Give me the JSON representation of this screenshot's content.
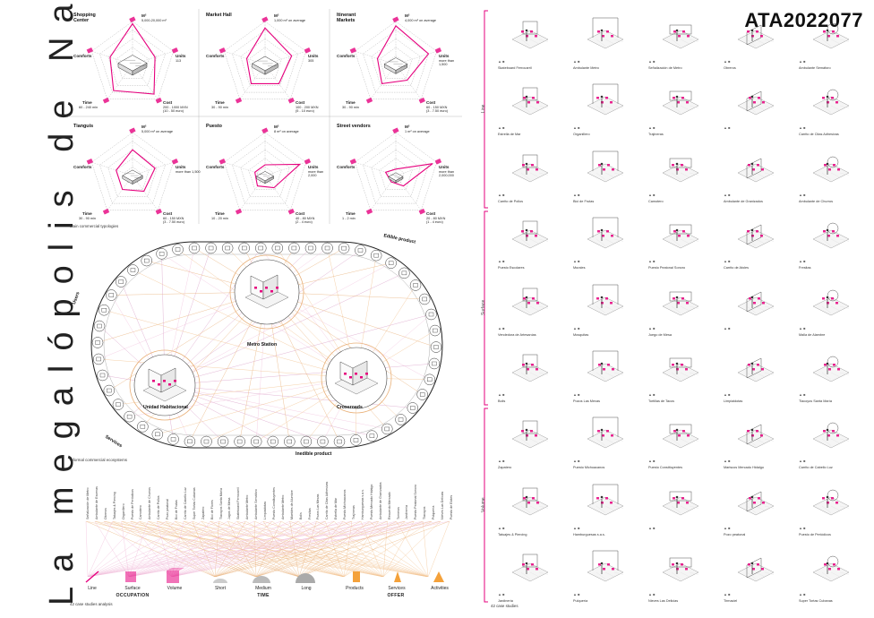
{
  "title": "La megalópolis de Nadie",
  "code": "ATA2022077",
  "accent": "#e6007e",
  "radars": [
    {
      "name": "Shopping Center",
      "m2": "5,000-20,000 m²",
      "units": "113",
      "cost": "200 - 1000 MXN\n(10 - 50 euro)",
      "time": "60 - 240 min"
    },
    {
      "name": "Market Hall",
      "m2": "1,000 m² on average",
      "units": "305",
      "cost": "100 - 200 MXN\n(5 - 10 euro)",
      "time": "30 - 90 min"
    },
    {
      "name": "Itinerant Markets",
      "m2": "4,000 m² on average",
      "units": "more than\n1,500",
      "cost": "60 - 150 MXN\n(3 - 7.50 euro)",
      "time": "30 - 90 min"
    },
    {
      "name": "Tianguis",
      "m2": "5,000 m² on average",
      "units": "more than 1,500",
      "cost": "60 - 150 MXN\n(3 - 7.50 euro)",
      "time": "30 - 90 min"
    },
    {
      "name": "Puesto",
      "m2": "8 m² on average",
      "units": "more than\n2,000",
      "cost": "40 - 80 MXN\n(2 - 4 euro)",
      "time": "10 - 20 min"
    },
    {
      "name": "Street vendors",
      "m2": "1 m² on average",
      "units": "more than\n2,000,000",
      "cost": "20 - 80 MXN\n(1 - 4 euro)",
      "time": "1 - 2 min"
    }
  ],
  "radar_axes": {
    "m2": "M²",
    "units": "Units",
    "cost": "Cost",
    "time": "Time",
    "comforts": "Comforts"
  },
  "captions": {
    "main_typologies": "Main commercial typologies",
    "ecosystems": "Informal commercial ecosystems",
    "analysis": "42 case studies analysis",
    "case_studies": "42 case studies"
  },
  "ring": {
    "edible": "Edible product",
    "inedible": "Inedible product",
    "users": "Users",
    "services": "Services",
    "nodes": [
      "Metro Station",
      "Unidad Habitacional",
      "Crossroads"
    ]
  },
  "case_list": [
    "Señalización de Metro",
    "Ambulante de Escenas",
    "Obreros",
    "Tatuajes & Piercing",
    "Organillero",
    "Puesto de Periódicos",
    "Camotero",
    "Ambulante de Churros",
    "Carrito de Pollos",
    "Pozo peatonal",
    "Bici de Frutas",
    "Carrito de Cabello Luz",
    "Super Tortas Cubanas",
    "Zapatero",
    "Bici de Flores",
    "Tlacoyos Santa María",
    "Jugos de Mesa",
    "Skateboard Ferrocarril",
    "Ambulante Metro",
    "Ambulante Semáforo",
    "Limpiaidotas",
    "Puesto Constituyentes",
    "Ambulante Metro",
    "Muebles de Alumbre",
    "Bolis",
    "Fresitas",
    "Pozos Las Mexas",
    "Carrito de Citas Adhesivas",
    "Estrella de Mar",
    "Puesto Michoacanos",
    "Trajineras",
    "Hamburguesas s.a.s.",
    "Puesto Mercado Hidalgo",
    "Ambulante de Granizados",
    "Recuerdo Mercado",
    "Torneros",
    "Jardinería",
    "Puesto Peatonal Sonoro",
    "Tlacoyos",
    "Pulquería",
    "Nieves Las Delicias",
    "Puesto de Elotes"
  ],
  "legend": {
    "occupation": {
      "title": "OCCUPATION",
      "items": [
        "Line",
        "Surface",
        "Volume"
      ]
    },
    "time": {
      "title": "TIME",
      "items": [
        "Short",
        "Medium",
        "Long"
      ]
    },
    "offer": {
      "title": "OFFER",
      "items": [
        "Products",
        "Services",
        "Activities"
      ]
    }
  },
  "sections": [
    "Line",
    "Surface",
    "Volume"
  ],
  "case_grid": [
    "Skateboard Ferrocarril",
    "Ambulante Metro",
    "Señalización de Metro",
    "Obreros",
    "Ambulante Semáforo",
    "Estrella de Mar",
    "Organillero",
    "Trajineras",
    "",
    "Carrito de Citas Adhesivas",
    "Carrito de Pollos",
    "Bici de Frutas",
    "Camotero",
    "Ambulante de Granizados",
    "Ambulante de Churros",
    "Puesto Escolares",
    "Murales",
    "Puesto Peatonal Sonoro",
    "Carrito de Atoles",
    "Fresitas",
    "Vendedora de Artesanías",
    "Mosquitas",
    "Juego de Mesa",
    "",
    "Malla de Alambre",
    "Bolis",
    "Pozos Las Mexas",
    "Tortillas de Tacos",
    "Limpiaidotas",
    "Tlacoyos Santa María",
    "Zapatero",
    "Puesto Michoacanos",
    "Puesto Constituyentes",
    "Mariscos Mercado Hidalgo",
    "Carrito de Cabello Luz",
    "Tatuajes & Piercing",
    "Hamburguesas s.a.s.",
    "",
    "Pozo peatonal",
    "Puesto de Periódicos",
    "Jardinería",
    "Pulquería",
    "Nieves Las Delicias",
    "Tirmaciel",
    "Super Tortas Cubanas"
  ]
}
